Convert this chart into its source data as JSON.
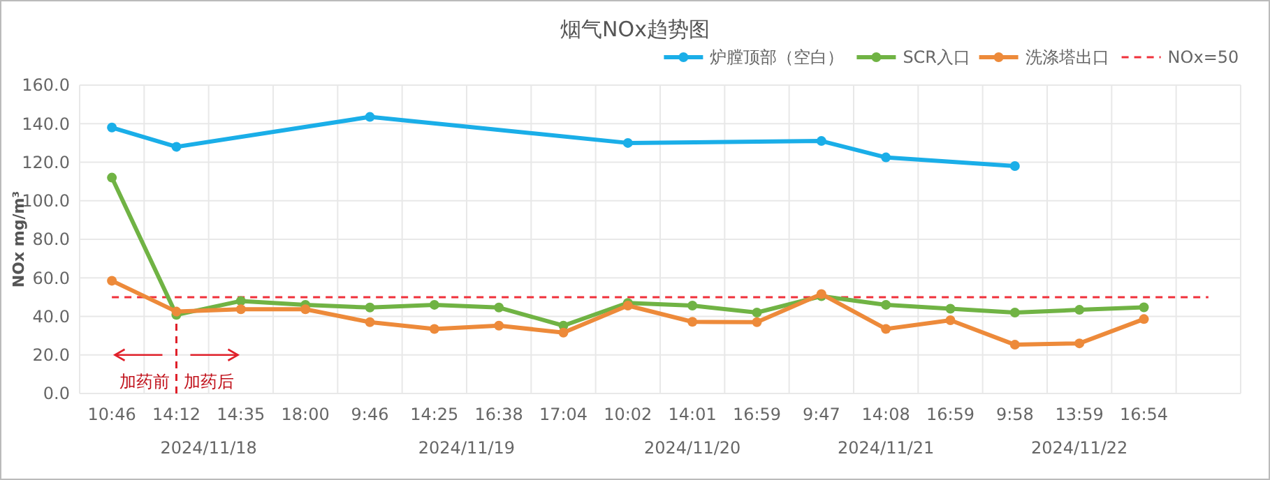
{
  "chart_data": {
    "type": "line",
    "title": "烟气NOx趋势图",
    "ylabel": "NOx mg/m³",
    "categories": [
      "10:46",
      "14:12",
      "14:35",
      "18:00",
      "9:46",
      "14:25",
      "16:38",
      "17:04",
      "10:02",
      "14:01",
      "16:59",
      "9:47",
      "14:08",
      "16:59",
      "9:58",
      "13:59",
      "16:54",
      null
    ],
    "series": [
      {
        "name": "炉膛顶部（空白）",
        "color": "#1aaee8",
        "x": [
          "10:46",
          "14:12",
          "9:46",
          "10:02",
          "9:47",
          "14:08",
          "9:58"
        ],
        "values": [
          138,
          128,
          143.5,
          130,
          131,
          122.5,
          118
        ]
      },
      {
        "name": "SCR入口",
        "color": "#70b344",
        "values": [
          112,
          40.8,
          48,
          46,
          44.6,
          46,
          44.6,
          35.2,
          47,
          45.6,
          42,
          50.5,
          46,
          44,
          42,
          43.4,
          44.7,
          null
        ]
      },
      {
        "name": "洗涤塔出口",
        "color": "#ed8a3a",
        "values": [
          58.5,
          42.5,
          43.7,
          43.7,
          37,
          33.5,
          35.2,
          31.6,
          45.6,
          37.2,
          37,
          51.6,
          33.5,
          38,
          25.3,
          26,
          38.6,
          null
        ]
      }
    ],
    "ylim": [
      0,
      160
    ],
    "yticks": [
      {
        "value": 0,
        "label": "0.0"
      },
      {
        "value": 20,
        "label": "20.0"
      },
      {
        "value": 40,
        "label": "40.0"
      },
      {
        "value": 60,
        "label": "60.0"
      },
      {
        "value": 80,
        "label": "80.0"
      },
      {
        "value": 100,
        "label": "100.0"
      },
      {
        "value": 120,
        "label": "120.0"
      },
      {
        "value": 140,
        "label": "140.0"
      },
      {
        "value": 160,
        "label": "160.0"
      }
    ],
    "ref_lines": [
      {
        "axis": "y",
        "value": 50,
        "label": "NOx=50",
        "color": "#f0303a",
        "line_style": "dashed"
      },
      {
        "axis": "x",
        "value": "14:12",
        "color": "#e0202a",
        "line_style": "dashed"
      }
    ],
    "annotations": [
      "加药前",
      "加药后",
      "2024/11/18",
      "2024/11/19",
      "2024/11/20",
      "2024/11/21",
      "2024/11/22"
    ],
    "grid": true,
    "legend": "top right",
    "marker": "circle",
    "line_style": "solid"
  }
}
